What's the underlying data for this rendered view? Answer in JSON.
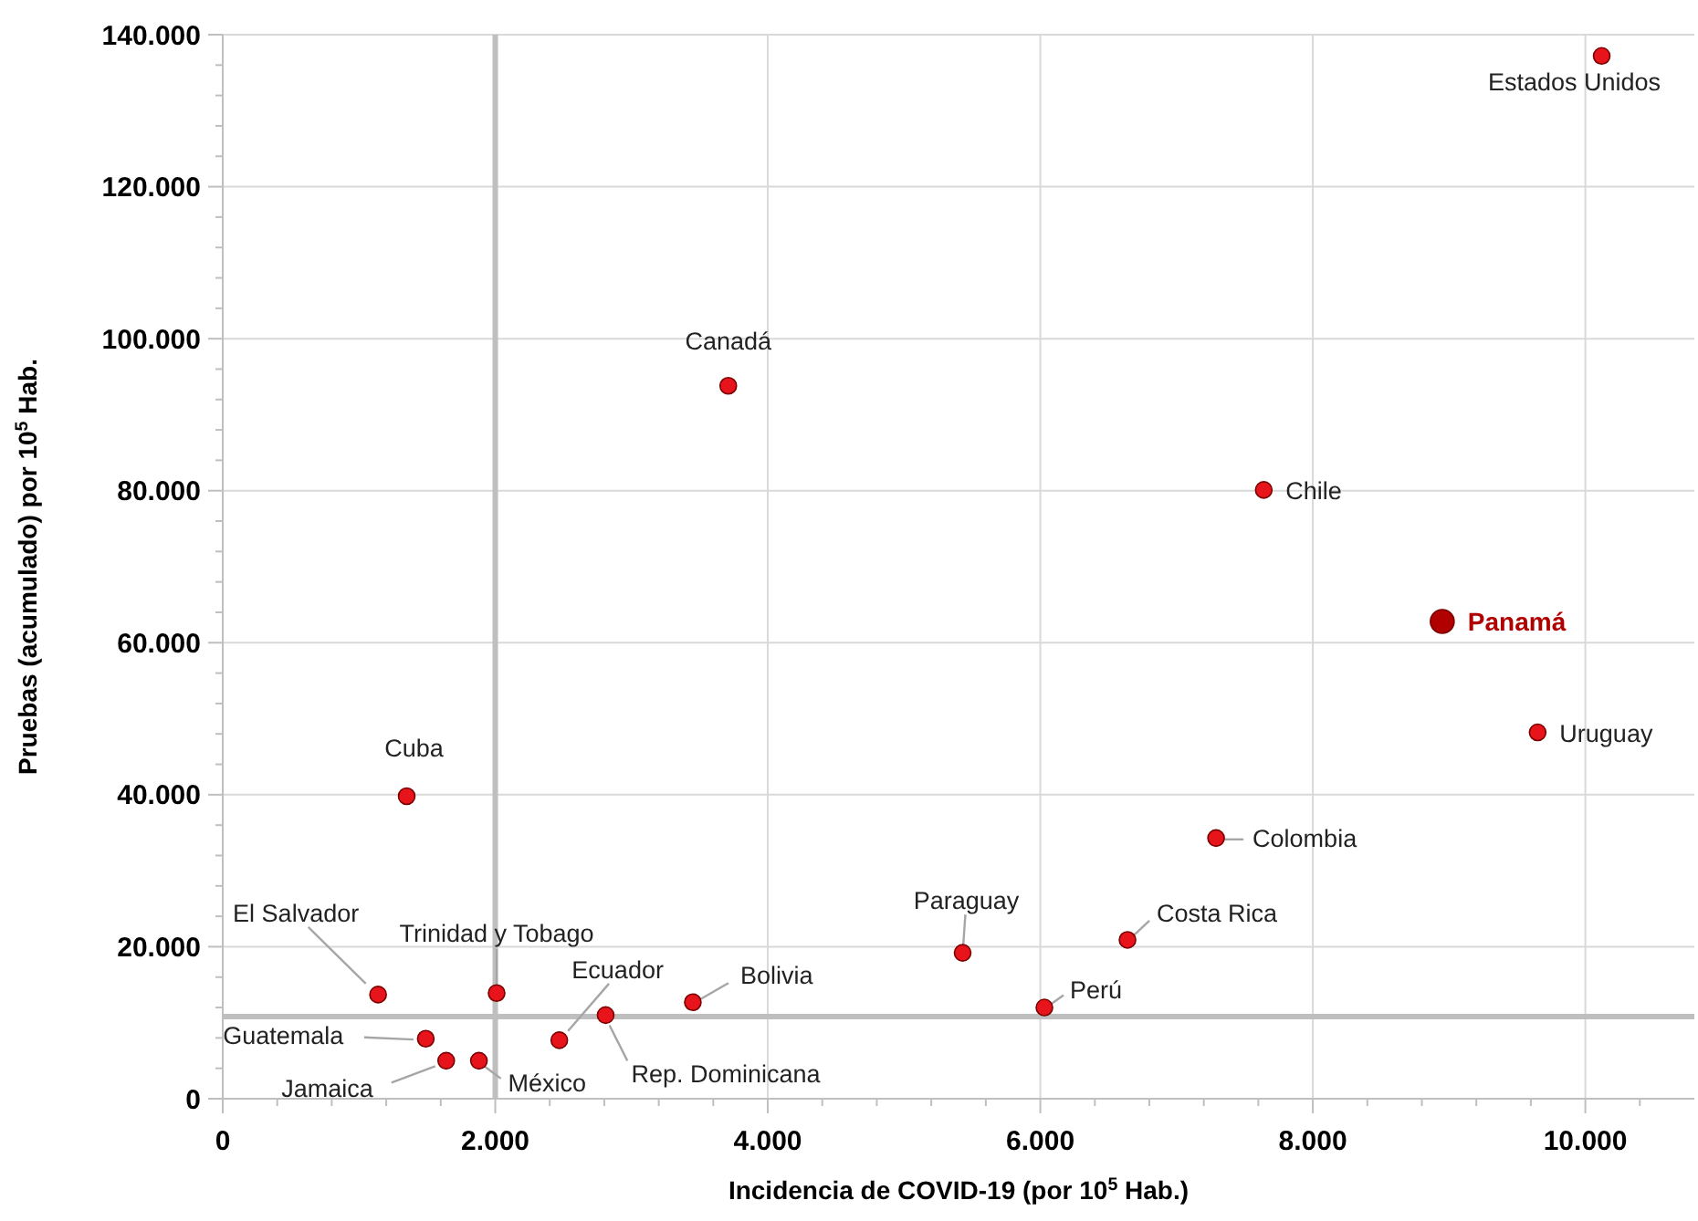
{
  "chart_data": {
    "type": "scatter",
    "xlabel": "Incidencia de COVID-19 (por 10$^{5}$ Hab.)",
    "ylabel": "Pruebas (acumulado) por 10$^{5}$ Hab.",
    "series": [
      {
        "color": "#e8141c",
        "x": [
          10120,
          3710,
          7640,
          9650,
          1350,
          7290,
          6640,
          5430,
          6030,
          1140,
          2010,
          3450,
          2810,
          2470,
          1490,
          1640,
          1880
        ],
        "values": [
          137200,
          93800,
          80100,
          48200,
          39800,
          34300,
          20900,
          19200,
          12000,
          13700,
          13900,
          12700,
          11000,
          7700,
          7900,
          5000,
          5000
        ]
      },
      {
        "name": "Panamá",
        "color": "#b00000",
        "x": [
          8950
        ],
        "values": [
          62800
        ]
      }
    ],
    "annotations": [
      {
        "text": "Estados Unidos",
        "x": 10120,
        "y": 137200
      },
      {
        "text": "Canadá",
        "x": 3710,
        "y": 93800
      },
      {
        "text": "Chile",
        "x": 7640,
        "y": 80100
      },
      {
        "text": "Uruguay",
        "x": 9650,
        "y": 48200
      },
      {
        "text": "Cuba",
        "x": 1350,
        "y": 39800
      },
      {
        "text": "Colombia",
        "x": 7290,
        "y": 34300
      },
      {
        "text": "Costa Rica",
        "x": 6640,
        "y": 20900
      },
      {
        "text": "Paraguay",
        "x": 5430,
        "y": 19200
      },
      {
        "text": "Perú",
        "x": 6030,
        "y": 12000
      },
      {
        "text": "El Salvador",
        "x": 1140,
        "y": 13700
      },
      {
        "text": "Trinidad y Tobago",
        "x": 2010,
        "y": 13900
      },
      {
        "text": "Bolivia",
        "x": 3450,
        "y": 12700
      },
      {
        "text": "Rep. Dominicana",
        "x": 2810,
        "y": 11000
      },
      {
        "text": "Ecuador",
        "x": 2470,
        "y": 7700
      },
      {
        "text": "Guatemala",
        "x": 1490,
        "y": 7900
      },
      {
        "text": "Jamaica",
        "x": 1640,
        "y": 5000
      },
      {
        "text": "México",
        "x": 1880,
        "y": 5000
      }
    ],
    "ref_lines": [
      {
        "axis": "x",
        "value": 2000,
        "color": "#bfbfbf"
      },
      {
        "axis": "y",
        "value": 10800,
        "color": "#bfbfbf"
      }
    ],
    "xlim": [
      0,
      10800
    ],
    "ylim": [
      0,
      140000
    ],
    "xticks": [
      0,
      {
        "value": 2000,
        "label": "2.000"
      },
      {
        "value": 4000,
        "label": "4.000"
      },
      {
        "value": 6000,
        "label": "6.000"
      },
      {
        "value": 8000,
        "label": "8.000"
      },
      {
        "value": 10000,
        "label": "10.000"
      }
    ],
    "yticks": [
      0,
      {
        "value": 20000,
        "label": "20.000"
      },
      {
        "value": 40000,
        "label": "40.000"
      },
      {
        "value": 60000,
        "label": "60.000"
      },
      {
        "value": 80000,
        "label": "80.000"
      },
      {
        "value": 100000,
        "label": "100.000"
      },
      {
        "value": 120000,
        "label": "120.000"
      },
      {
        "value": 140000,
        "label": "140.000"
      }
    ],
    "grid": true,
    "marker": "circle"
  }
}
